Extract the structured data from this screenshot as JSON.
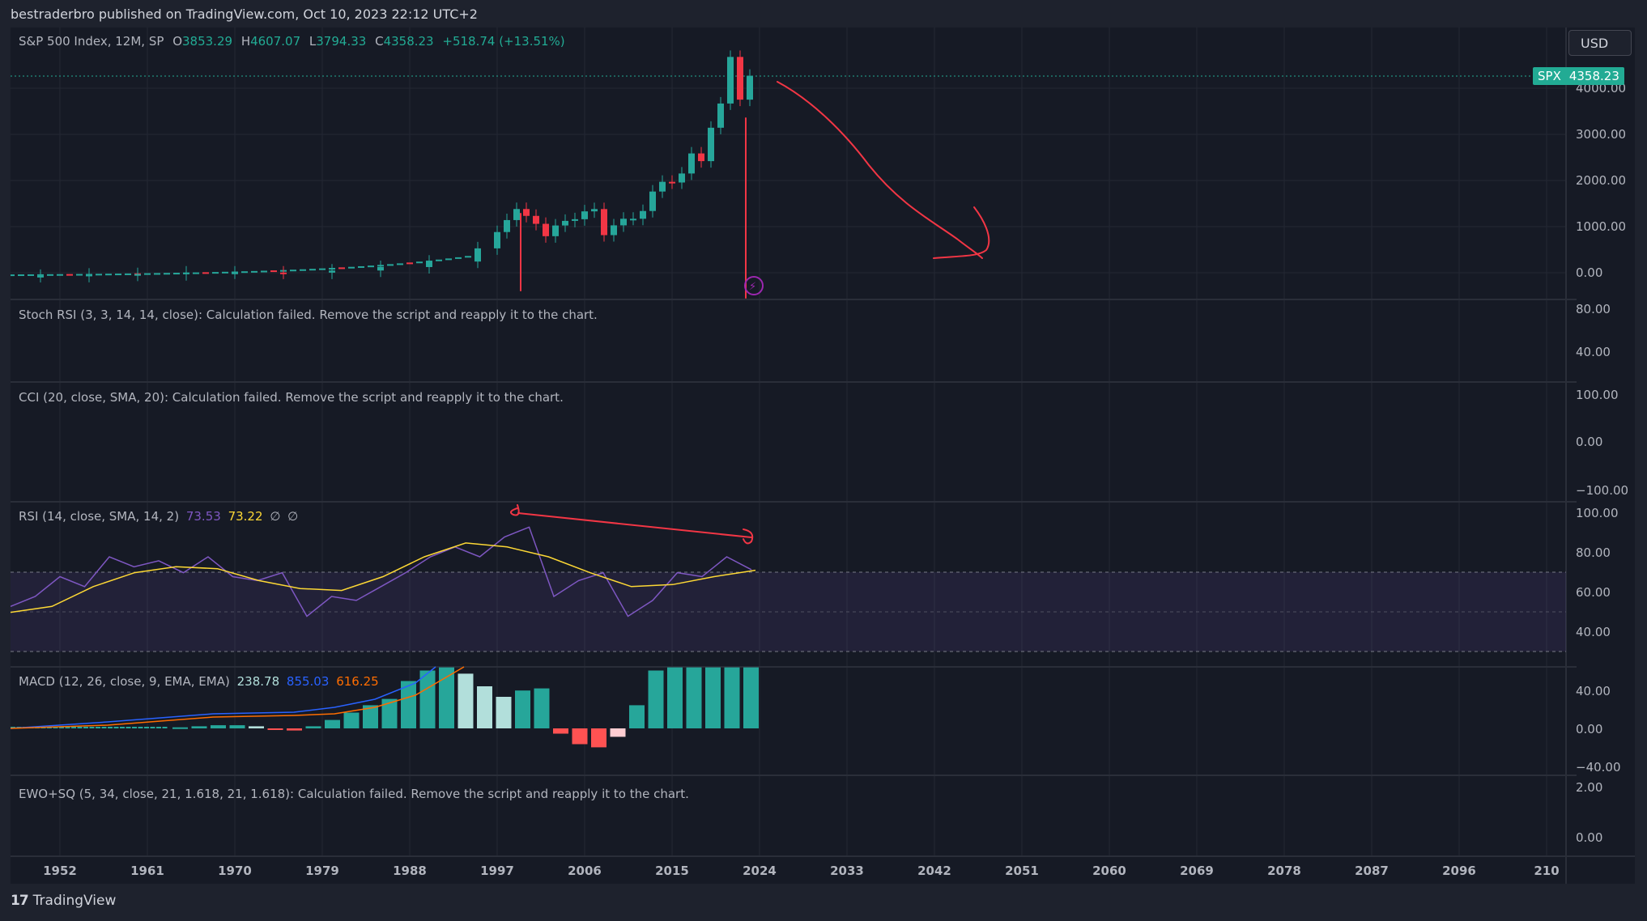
{
  "header": {
    "publisher_line": "bestraderbro published on TradingView.com, Oct 10, 2023 22:12 UTC+2"
  },
  "symbol_legend": {
    "title": "S&P 500 Index, 12M, SP",
    "o_label": "O",
    "o": "3853.29",
    "h_label": "H",
    "h": "4607.07",
    "l_label": "L",
    "l": "3794.33",
    "c_label": "C",
    "c": "4358.23",
    "change": "+518.74 (+13.51%)"
  },
  "currency_button": "USD",
  "price_badge": {
    "symbol": "SPX",
    "price": "4358.23"
  },
  "price_axis": [
    "4000.00",
    "3000.00",
    "2000.00",
    "1000.00",
    "0.00"
  ],
  "stoch_pane": {
    "label": "Stoch RSI (3, 3, 14, 14, close): Calculation failed. Remove the script and reapply it to the chart.",
    "axis": [
      "80.00",
      "40.00"
    ]
  },
  "cci_pane": {
    "label": "CCI (20, close, SMA, 20): Calculation failed. Remove the script and reapply it to the chart.",
    "axis": [
      "100.00",
      "0.00",
      "−100.00"
    ]
  },
  "rsi_pane": {
    "label": "RSI (14, close, SMA, 14, 2)",
    "rsi_value": "73.53",
    "sma_value": "73.22",
    "empty1": "∅",
    "empty2": "∅",
    "axis": [
      "100.00",
      "80.00",
      "60.00",
      "40.00"
    ]
  },
  "macd_pane": {
    "label": "MACD (12, 26, close, 9, EMA, EMA)",
    "hist_value": "238.78",
    "macd_value": "855.03",
    "signal_value": "616.25",
    "axis": [
      "40.00",
      "0.00",
      "−40.00"
    ]
  },
  "ewo_pane": {
    "label": "EWO+SQ (5, 34, close, 21, 1.618, 21, 1.618): Calculation failed. Remove the script and reapply it to the chart.",
    "axis": [
      "2.00",
      "0.00"
    ]
  },
  "time_axis": [
    "1952",
    "1961",
    "1970",
    "1979",
    "1988",
    "1997",
    "2006",
    "2015",
    "2024",
    "2033",
    "2042",
    "2051",
    "2060",
    "2069",
    "2078",
    "2087",
    "2096",
    "210"
  ],
  "footer": {
    "brand": "TradingView",
    "logo_glyph": "17"
  },
  "colors": {
    "up": "#26a69a",
    "down": "#f23645",
    "rsi": "#7e57c2",
    "rsi_sma": "#fdd835",
    "macd": "#2962ff",
    "signal": "#ff6d00",
    "drawing": "#f23645",
    "background": "#161a25"
  },
  "chart_data": {
    "type": "candlestick",
    "series": [
      {
        "name": "S&P 500 Index",
        "x": [
          1950,
          1955,
          1960,
          1965,
          1970,
          1975,
          1980,
          1985,
          1990,
          1995,
          1997,
          1998,
          1999,
          2000,
          2001,
          2002,
          2003,
          2004,
          2005,
          2006,
          2007,
          2008,
          2009,
          2010,
          2011,
          2012,
          2013,
          2014,
          2015,
          2016,
          2017,
          2018,
          2019,
          2020,
          2021,
          2022,
          2023
        ],
        "close": [
          20,
          45,
          58,
          92,
          92,
          90,
          136,
          211,
          330,
          616,
          970,
          1229,
          1469,
          1320,
          1148,
          880,
          1112,
          1212,
          1248,
          1418,
          1468,
          903,
          1115,
          1258,
          1258,
          1426,
          1848,
          2059,
          2044,
          2239,
          2674,
          2507,
          3231,
          3756,
          4766,
          3840,
          4358
        ]
      },
      {
        "name": "RSI (14)",
        "values": [
          55,
          60,
          70,
          65,
          80,
          75,
          78,
          72,
          80,
          70,
          68,
          72,
          50,
          60,
          58,
          65,
          72,
          80,
          85,
          80,
          90,
          95,
          60,
          68,
          72,
          50,
          58,
          72,
          70,
          80,
          73.53
        ]
      },
      {
        "name": "RSI SMA",
        "values": [
          52,
          55,
          65,
          72,
          75,
          74,
          68,
          64,
          63,
          70,
          80,
          87,
          85,
          80,
          72,
          65,
          66,
          70,
          73.22
        ]
      },
      {
        "name": "MACD histogram",
        "values": [
          1,
          2,
          3,
          3,
          2,
          -1,
          -2,
          2,
          8,
          15,
          22,
          28,
          45,
          55,
          58,
          52,
          40,
          30,
          36,
          38,
          -5,
          -15,
          -18,
          -8,
          22,
          55,
          58,
          58,
          58,
          58,
          58
        ]
      }
    ]
  }
}
